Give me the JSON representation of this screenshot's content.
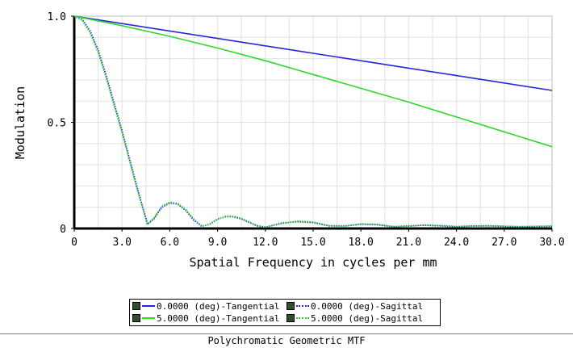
{
  "window_title": "Polychromatic Geometric MTF",
  "chart_data": {
    "type": "line",
    "title": "Polychromatic Geometric MTF",
    "xlabel": "Spatial Frequency in cycles per mm",
    "ylabel": "Modulation",
    "xlim": [
      0,
      30
    ],
    "ylim": [
      0,
      1
    ],
    "x_ticks": [
      "0",
      "3.0",
      "6.0",
      "9.0",
      "12.0",
      "15.0",
      "18.0",
      "21.0",
      "24.0",
      "27.0",
      "30.0"
    ],
    "y_ticks": [
      "0",
      "0.5",
      "1.0"
    ],
    "grid": true,
    "legend_position": "bottom-center",
    "series": [
      {
        "name": "0.0000 (deg)-Tangential",
        "color": "#2828d8",
        "style": "solid",
        "x": [
          0,
          3,
          6,
          9,
          12,
          15,
          18,
          21,
          24,
          27,
          30
        ],
        "y": [
          1.0,
          0.965,
          0.93,
          0.895,
          0.86,
          0.825,
          0.79,
          0.755,
          0.72,
          0.685,
          0.65
        ]
      },
      {
        "name": "0.0000 (deg)-Sagittal",
        "color": "#2828d8",
        "style": "dotted",
        "x": [
          0,
          0.5,
          1,
          1.5,
          2,
          3,
          4,
          4.6,
          5,
          5.5,
          6,
          6.5,
          7,
          7.5,
          8,
          8.5,
          9,
          9.5,
          10,
          10.5,
          11,
          11.5,
          12,
          13,
          14,
          15,
          16,
          17,
          18,
          19,
          20,
          21,
          22,
          23,
          24,
          25,
          26,
          27,
          28,
          29,
          30
        ],
        "y": [
          1.0,
          0.985,
          0.93,
          0.84,
          0.72,
          0.46,
          0.18,
          0.02,
          0.045,
          0.1,
          0.12,
          0.115,
          0.085,
          0.04,
          0.01,
          0.02,
          0.045,
          0.055,
          0.055,
          0.045,
          0.028,
          0.012,
          0.006,
          0.025,
          0.032,
          0.028,
          0.012,
          0.012,
          0.02,
          0.018,
          0.008,
          0.012,
          0.015,
          0.012,
          0.008,
          0.012,
          0.012,
          0.01,
          0.008,
          0.01,
          0.01
        ]
      },
      {
        "name": "5.0000 (deg)-Tangential",
        "color": "#2ed82e",
        "style": "solid",
        "x": [
          0,
          3,
          6,
          9,
          12,
          15,
          18,
          21,
          24,
          27,
          30
        ],
        "y": [
          1.0,
          0.955,
          0.905,
          0.85,
          0.79,
          0.725,
          0.66,
          0.595,
          0.525,
          0.455,
          0.385
        ]
      },
      {
        "name": "5.0000 (deg)-Sagittal",
        "color": "#2ed82e",
        "style": "dotted",
        "x": [
          0,
          0.5,
          1,
          1.5,
          2,
          3,
          4,
          4.6,
          5,
          5.5,
          6,
          6.5,
          7,
          7.5,
          8,
          8.5,
          9,
          9.5,
          10,
          10.5,
          11,
          11.5,
          12,
          13,
          14,
          15,
          16,
          17,
          18,
          19,
          20,
          21,
          22,
          23,
          24,
          25,
          26,
          27,
          28,
          29,
          30
        ],
        "y": [
          1.0,
          0.98,
          0.92,
          0.83,
          0.71,
          0.45,
          0.17,
          0.02,
          0.05,
          0.105,
          0.125,
          0.118,
          0.09,
          0.045,
          0.012,
          0.018,
          0.042,
          0.058,
          0.058,
          0.048,
          0.03,
          0.014,
          0.006,
          0.022,
          0.035,
          0.03,
          0.014,
          0.01,
          0.022,
          0.02,
          0.01,
          0.01,
          0.017,
          0.014,
          0.01,
          0.011,
          0.013,
          0.011,
          0.009,
          0.01,
          0.012
        ]
      }
    ]
  }
}
